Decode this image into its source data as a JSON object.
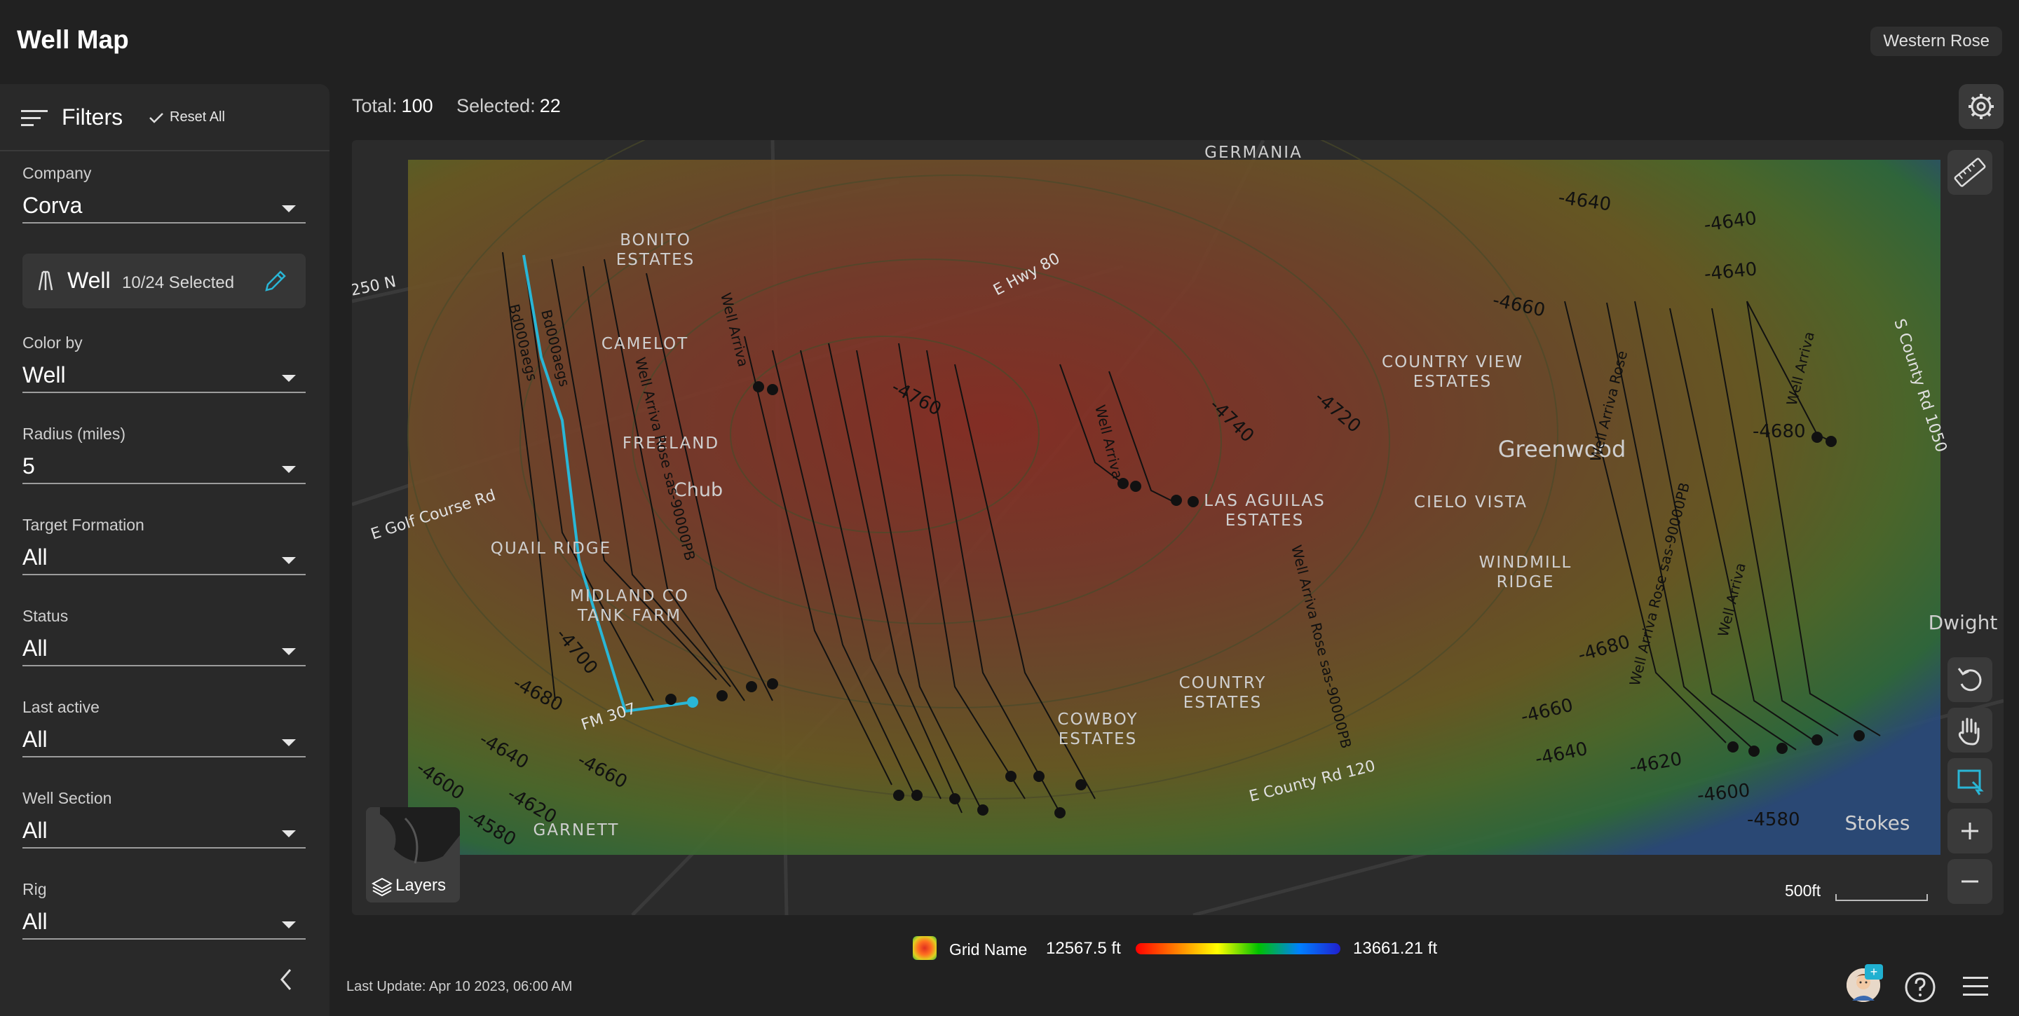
{
  "header": {
    "title": "Well Map",
    "company": "Western Rose"
  },
  "filters": {
    "title": "Filters",
    "reset_label": "Reset All",
    "company": {
      "label": "Company",
      "value": "Corva"
    },
    "well": {
      "label": "Well",
      "count": "10/24 Selected"
    },
    "color_by": {
      "label": "Color by",
      "value": "Well"
    },
    "radius": {
      "label": "Radius (miles)",
      "value": "5"
    },
    "target_formation": {
      "label": "Target Formation",
      "value": "All"
    },
    "status": {
      "label": "Status",
      "value": "All"
    },
    "last_active": {
      "label": "Last active",
      "value": "All"
    },
    "well_section": {
      "label": "Well Section",
      "value": "All"
    },
    "rig": {
      "label": "Rig",
      "value": "All"
    }
  },
  "stats": {
    "total_label": "Total:",
    "total": "100",
    "selected_label": "Selected:",
    "selected": "22"
  },
  "map": {
    "layers_label": "Layers",
    "scale_label": "500ft",
    "places": [
      "GERMANIA",
      "BONITO ESTATES",
      "CAMELOT",
      "FREELAND",
      "Chub",
      "QUAIL RIDGE",
      "MIDLAND CO TANK FARM",
      "GARNETT",
      "COUNTRY VIEW ESTATES",
      "Greenwood",
      "CIELO VISTA",
      "WINDMILL RIDGE",
      "LAS AGUILAS ESTATES",
      "COUNTRY ESTATES",
      "COWBOY ESTATES",
      "Dwight",
      "Stokes"
    ],
    "roads": [
      "E Hwy 80",
      "E Golf Course Rd",
      "FM 307",
      "E County Rd 120",
      "S County Rd 1050",
      "250 N"
    ],
    "contours": [
      "-4640",
      "-4640",
      "-4640",
      "-4660",
      "-4720",
      "-4740",
      "-4760",
      "-4680",
      "-4700",
      "-4680",
      "-4640",
      "-4660",
      "-4600",
      "-4620",
      "-4580",
      "-4680",
      "-4660",
      "-4640",
      "-4620",
      "-4600",
      "-4580"
    ],
    "well_labels": [
      "Well Arriva",
      "Well Arriva Rose",
      "Well Arriva Rose sas-90000PB",
      "Bd000aegs"
    ],
    "colors": {
      "trajectory_selected": "#29b6d6",
      "trajectory": "#111111"
    }
  },
  "legend": {
    "grid_name": "Grid Name",
    "min": "12567.5 ft",
    "max": "13661.21 ft"
  },
  "footer": {
    "last_update": "Last Update: Apr 10 2023, 06:00 AM",
    "avatar_badge": "+"
  }
}
